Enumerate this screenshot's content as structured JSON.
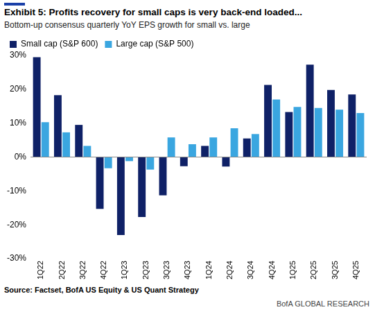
{
  "chart_data": {
    "type": "bar",
    "title": "Exhibit 5: Profits recovery for small caps is very back-end loaded...",
    "subtitle": "Bottom-up consensus quarterly YoY EPS growth for small vs. large",
    "source": "Source: Factset, BofA US Equity & US Quant Strategy",
    "footer": "BofA GLOBAL RESEARCH",
    "categories": [
      "1Q22",
      "2Q22",
      "3Q22",
      "4Q22",
      "1Q23",
      "2Q23",
      "3Q23",
      "4Q23",
      "1Q24",
      "2Q24",
      "3Q24",
      "4Q24",
      "1Q25",
      "2Q25",
      "3Q25",
      "4Q25"
    ],
    "series": [
      {
        "name": "Small cap (S&P 600)",
        "color": "#0f2167",
        "values": [
          29.5,
          18.3,
          9.5,
          -15.3,
          -23,
          -17.7,
          -11.3,
          -2.7,
          3.3,
          -2.8,
          5.5,
          21.3,
          13.3,
          27.3,
          19.8,
          18.5
        ]
      },
      {
        "name": "Large cap (S&P 500)",
        "color": "#3aa6e0",
        "values": [
          10.3,
          7.3,
          3.3,
          -3.3,
          -1.2,
          -3.7,
          5.8,
          3.8,
          5.8,
          8.5,
          6.8,
          17,
          14.8,
          14.5,
          14,
          13
        ]
      }
    ],
    "ylim": [
      -30,
      30
    ],
    "yticks": [
      {
        "value": -30,
        "label": "-30%"
      },
      {
        "value": -20,
        "label": "-20%"
      },
      {
        "value": -10,
        "label": "-10%"
      },
      {
        "value": 0,
        "label": "0%"
      },
      {
        "value": 10,
        "label": "10%"
      },
      {
        "value": 20,
        "label": "20%"
      },
      {
        "value": 30,
        "label": "30%"
      }
    ],
    "grid": false,
    "legend": "upper left"
  }
}
